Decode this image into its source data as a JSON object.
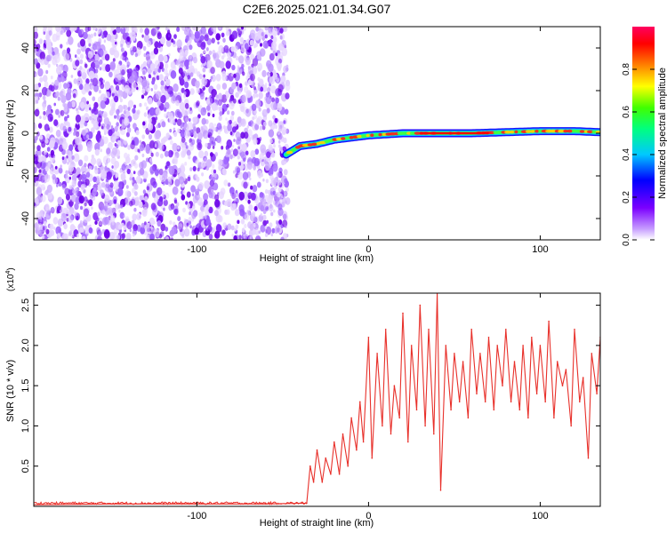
{
  "title": "C2E6.2025.021.01.34.G07",
  "chart_data": [
    {
      "type": "heatmap",
      "title": "C2E6.2025.021.01.34.G07",
      "xlabel": "Height of straight line (km)",
      "ylabel": "Frequency (Hz)",
      "xlim": [
        -195,
        135
      ],
      "ylim": [
        -50,
        50
      ],
      "xticks": [
        -100,
        0,
        100
      ],
      "xtick_labels": [
        "-100",
        "0",
        "100"
      ],
      "yticks": [
        -40,
        -20,
        0,
        20,
        40
      ],
      "ytick_labels": [
        "-40",
        "-20",
        "0",
        "20",
        "40"
      ],
      "colorbar": {
        "label": "Normalized spectral amplitude",
        "range": [
          0,
          1
        ],
        "ticks": [
          0,
          0.2,
          0.4,
          0.6,
          0.8
        ],
        "tick_labels": [
          "0.0",
          "0.2",
          "0.4",
          "0.6",
          "0.8"
        ]
      },
      "noise_region": {
        "x_range": [
          -195,
          -47
        ],
        "freq_range": [
          -50,
          50
        ]
      },
      "signal_track": {
        "x": [
          -48,
          -40,
          -30,
          -20,
          -10,
          0,
          20,
          40,
          60,
          80,
          100,
          120,
          135
        ],
        "freq": [
          -10,
          -6,
          -5,
          -3,
          -2,
          -1,
          0,
          0,
          0,
          0.5,
          1,
          1,
          0.5
        ]
      },
      "grid": false
    },
    {
      "type": "line",
      "xlabel": "Height of straight line (km)",
      "ylabel": "SNR (10 * v/v)",
      "y_multiplier": "(x10^4)",
      "xlim": [
        -195,
        135
      ],
      "ylim": [
        0,
        2.65
      ],
      "xticks": [
        -100,
        0,
        100
      ],
      "xtick_labels": [
        "-100",
        "0",
        "100"
      ],
      "yticks": [
        0.5,
        1.0,
        1.5,
        2.0,
        2.5
      ],
      "ytick_labels": [
        "0.5",
        "1.0",
        "1.5",
        "2.0",
        "2.5"
      ],
      "series": [
        {
          "color": "#e8302a",
          "x": [
            -195,
            -150,
            -100,
            -60,
            -36,
            -34,
            -32,
            -30,
            -27,
            -25,
            -22,
            -20,
            -17,
            -15,
            -12,
            -10,
            -7,
            -5,
            -3,
            0,
            2,
            5,
            8,
            10,
            13,
            15,
            18,
            20,
            23,
            25,
            28,
            30,
            33,
            35,
            38,
            40,
            42,
            45,
            48,
            50,
            53,
            55,
            58,
            60,
            63,
            65,
            68,
            70,
            73,
            75,
            78,
            80,
            83,
            85,
            88,
            90,
            93,
            95,
            98,
            100,
            103,
            105,
            108,
            110,
            113,
            115,
            118,
            120,
            123,
            125,
            128,
            130,
            133,
            135
          ],
          "y": [
            0.02,
            0.03,
            0.03,
            0.03,
            0.04,
            0.5,
            0.3,
            0.7,
            0.3,
            0.6,
            0.4,
            0.8,
            0.4,
            0.9,
            0.5,
            1.1,
            0.7,
            1.3,
            0.8,
            2.1,
            0.6,
            1.9,
            1.0,
            2.2,
            0.9,
            1.5,
            1.1,
            2.4,
            0.8,
            2.0,
            1.2,
            2.5,
            1.0,
            2.2,
            0.9,
            2.65,
            0.2,
            2.0,
            1.2,
            1.9,
            1.3,
            1.8,
            1.1,
            2.2,
            1.4,
            1.9,
            1.3,
            2.1,
            1.2,
            2.0,
            1.5,
            2.2,
            1.3,
            1.8,
            1.2,
            2.0,
            1.1,
            2.1,
            1.4,
            2.0,
            1.3,
            2.3,
            1.1,
            1.8,
            1.5,
            1.7,
            1.0,
            2.2,
            1.3,
            1.6,
            0.6,
            1.9,
            1.4,
            2.1
          ]
        }
      ],
      "grid": false
    }
  ]
}
